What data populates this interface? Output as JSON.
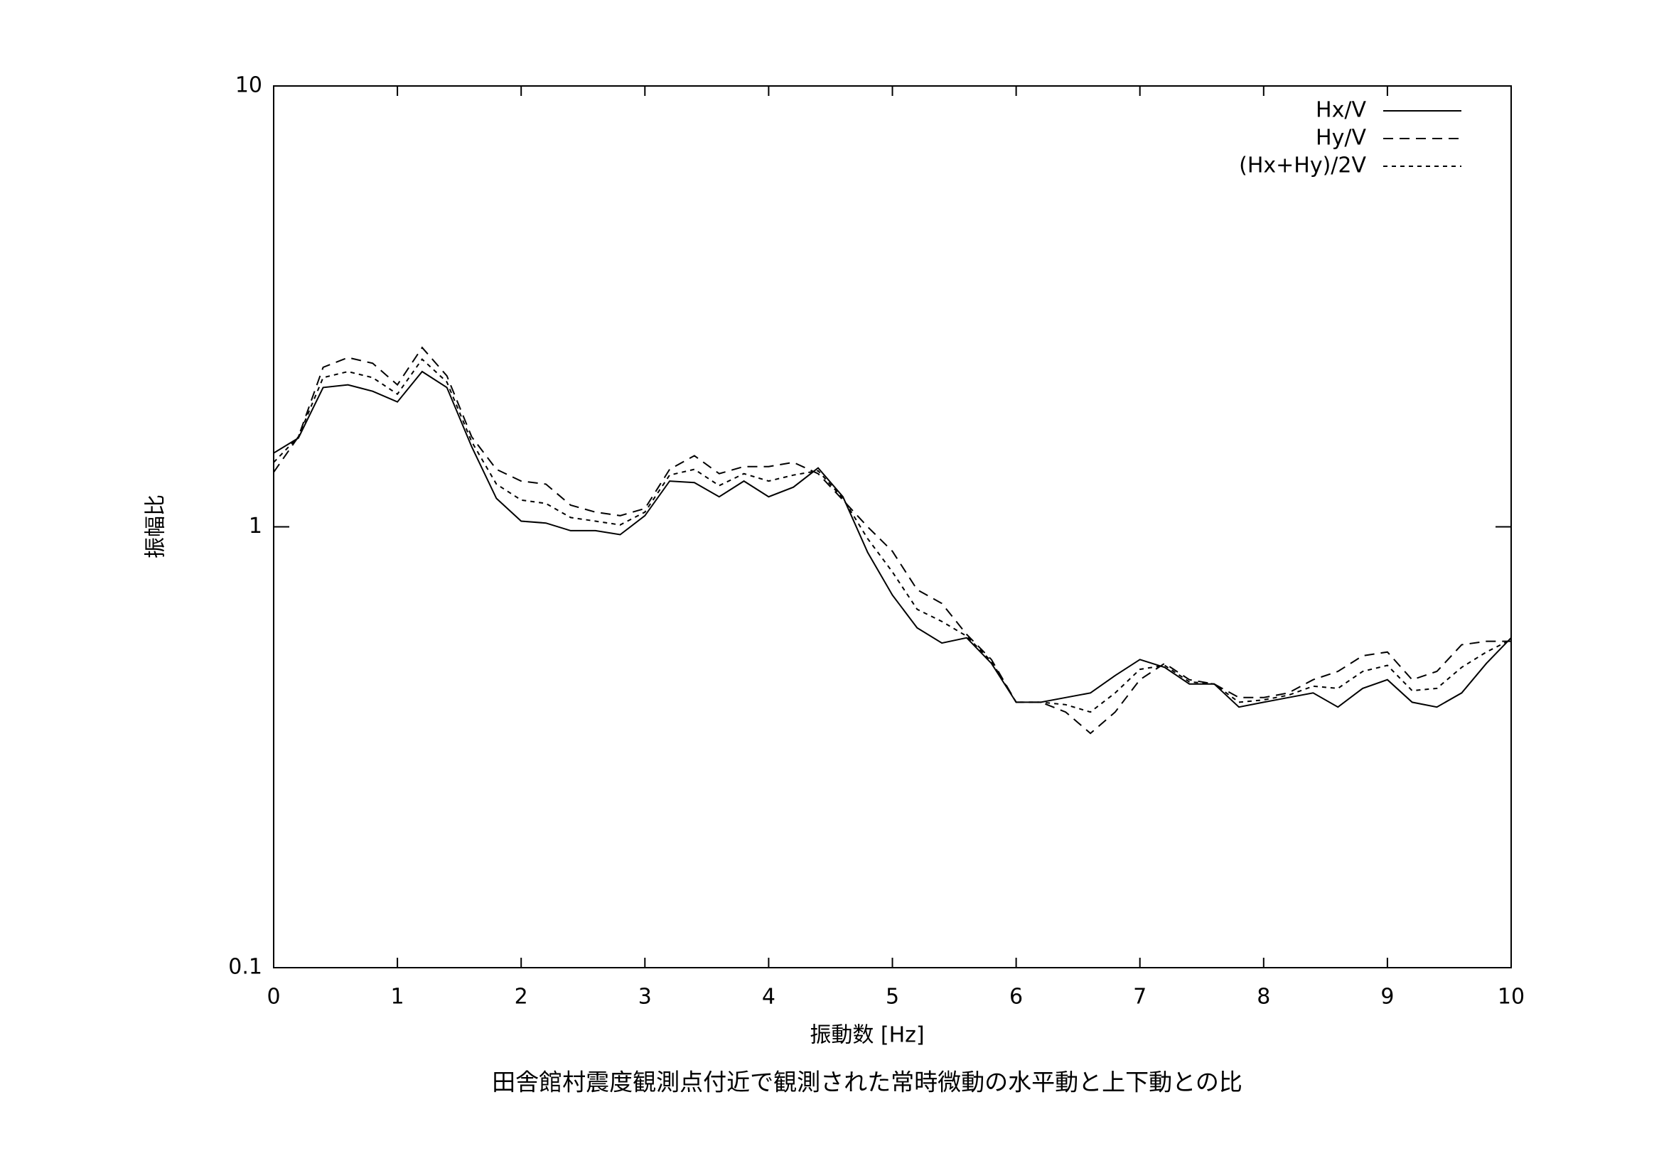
{
  "chart_data": {
    "type": "line",
    "title": "田舎館村震度観測点付近で観測された常時微動の水平動と上下動との比",
    "x_label": "振動数 [Hz]",
    "y_label": "振幅比",
    "log_y": true,
    "grid": false,
    "legend": "top-right",
    "xlim": [
      0,
      10
    ],
    "xticks": [
      0,
      1,
      2,
      3,
      4,
      5,
      6,
      7,
      8,
      9,
      10
    ],
    "ylim": [
      0.1,
      10
    ],
    "yticks": [
      0.1,
      1,
      10
    ],
    "x": [
      0,
      0.2,
      0.4,
      0.6,
      0.8,
      1.0,
      1.2,
      1.4,
      1.6,
      1.8,
      2.0,
      2.2,
      2.4,
      2.6,
      2.8,
      3.0,
      3.2,
      3.4,
      3.6,
      3.8,
      4.0,
      4.2,
      4.4,
      4.6,
      4.8,
      5.0,
      5.2,
      5.4,
      5.6,
      5.8,
      6.0,
      6.2,
      6.4,
      6.6,
      6.8,
      7.0,
      7.2,
      7.4,
      7.6,
      7.8,
      8.0,
      8.2,
      8.4,
      8.6,
      8.8,
      9.0,
      9.2,
      9.4,
      9.6,
      9.8,
      10.0
    ],
    "series": [
      {
        "name": "Hx/V",
        "color": "#000000",
        "dash": "none",
        "values": [
          1.47,
          1.59,
          2.07,
          2.1,
          2.03,
          1.92,
          2.25,
          2.07,
          1.52,
          1.16,
          1.03,
          1.02,
          0.98,
          0.98,
          0.96,
          1.06,
          1.27,
          1.26,
          1.17,
          1.27,
          1.17,
          1.23,
          1.36,
          1.17,
          0.875,
          0.7,
          0.59,
          0.545,
          0.56,
          0.49,
          0.4,
          0.4,
          0.41,
          0.42,
          0.46,
          0.5,
          0.48,
          0.44,
          0.44,
          0.39,
          0.4,
          0.41,
          0.42,
          0.39,
          0.43,
          0.45,
          0.4,
          0.39,
          0.42,
          0.49,
          0.56
        ]
      },
      {
        "name": "Hy/V",
        "color": "#000000",
        "dash": "14,9",
        "values": [
          1.33,
          1.6,
          2.3,
          2.42,
          2.35,
          2.1,
          2.55,
          2.2,
          1.6,
          1.35,
          1.27,
          1.25,
          1.12,
          1.08,
          1.06,
          1.1,
          1.35,
          1.45,
          1.32,
          1.37,
          1.37,
          1.4,
          1.32,
          1.15,
          1.0,
          0.88,
          0.72,
          0.67,
          0.57,
          0.5,
          0.4,
          0.4,
          0.38,
          0.34,
          0.38,
          0.45,
          0.49,
          0.45,
          0.44,
          0.41,
          0.41,
          0.42,
          0.45,
          0.47,
          0.51,
          0.52,
          0.45,
          0.47,
          0.54,
          0.55,
          0.55
        ]
      },
      {
        "name": "(Hx+Hy)/2V",
        "color": "#000000",
        "dash": "6,6",
        "values": [
          1.4,
          1.6,
          2.18,
          2.25,
          2.18,
          2.0,
          2.4,
          2.13,
          1.56,
          1.25,
          1.15,
          1.13,
          1.05,
          1.03,
          1.01,
          1.08,
          1.31,
          1.35,
          1.24,
          1.32,
          1.27,
          1.31,
          1.34,
          1.16,
          0.94,
          0.79,
          0.65,
          0.61,
          0.565,
          0.495,
          0.4,
          0.4,
          0.395,
          0.38,
          0.42,
          0.475,
          0.485,
          0.445,
          0.44,
          0.4,
          0.405,
          0.415,
          0.435,
          0.43,
          0.47,
          0.485,
          0.425,
          0.43,
          0.48,
          0.52,
          0.555
        ]
      }
    ]
  }
}
